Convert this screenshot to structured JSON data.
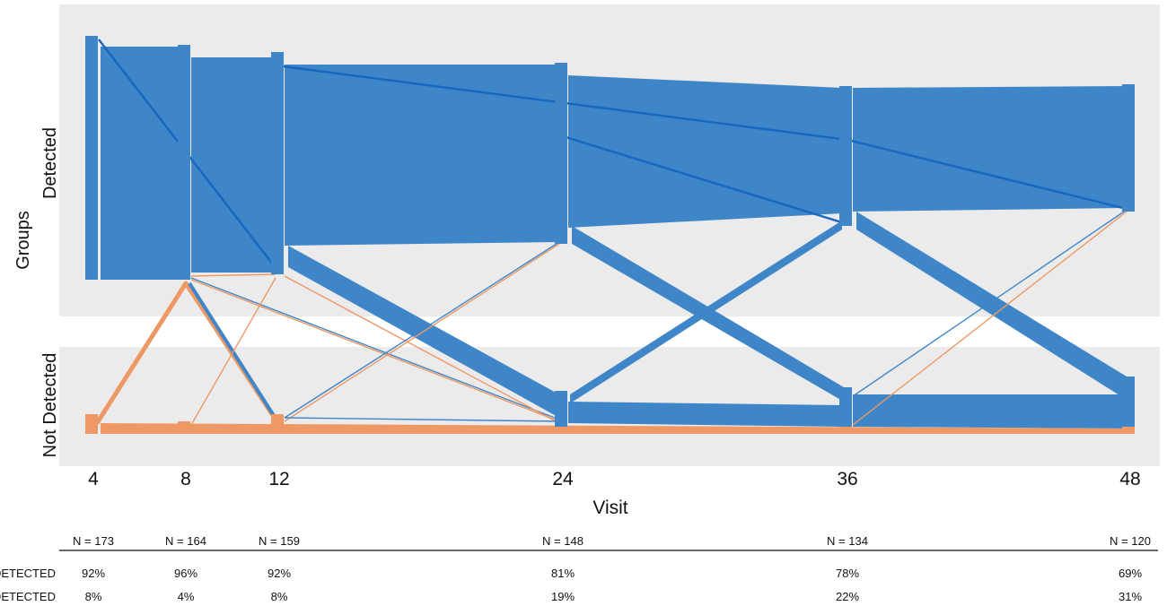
{
  "chart_data": {
    "type": "sankey",
    "x": [
      4,
      8,
      12,
      24,
      36,
      48
    ],
    "x_ticks": [
      "4",
      "8",
      "12",
      "24",
      "36",
      "48"
    ],
    "xlabel": "Visit",
    "ylabel": "Groups",
    "groups": [
      "Detected",
      "Not Detected"
    ],
    "colors": {
      "Detected": "#3f86c9",
      "Not Detected": "#ee9866"
    },
    "grid_band_color": "#ebebeb",
    "table": {
      "n_values": [
        "N = 173",
        "N = 164",
        "N = 159",
        "N = 148",
        "N = 134",
        "N = 120"
      ],
      "rows": [
        {
          "label": "DETECTED",
          "values": [
            "92%",
            "96%",
            "92%",
            "81%",
            "78%",
            "69%"
          ]
        },
        {
          "label": "NOT DETECTED",
          "values": [
            "8%",
            "4%",
            "8%",
            "19%",
            "22%",
            "31%"
          ]
        }
      ]
    }
  }
}
